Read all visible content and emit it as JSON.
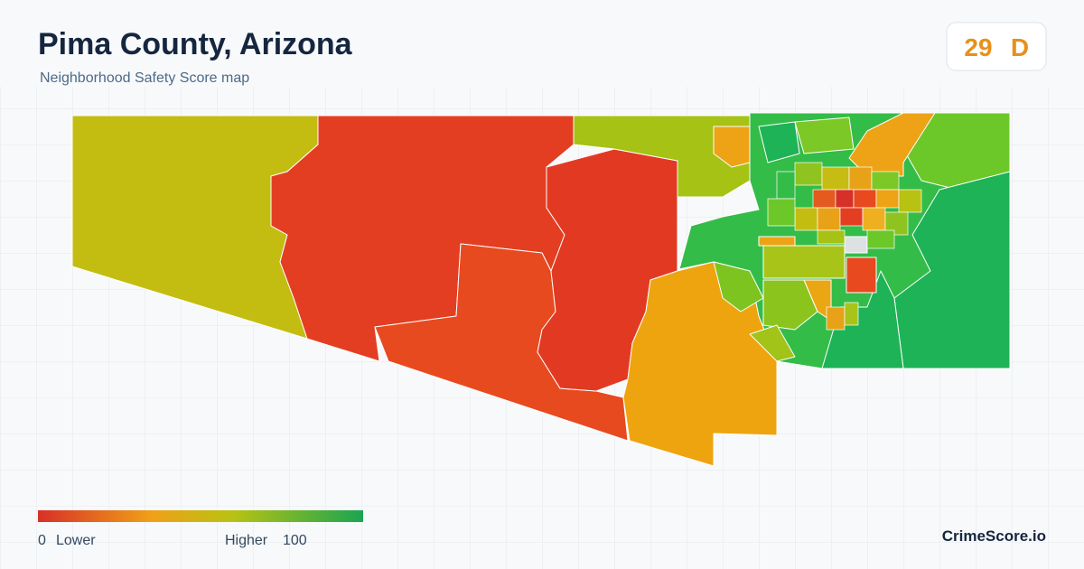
{
  "header": {
    "title": "Pima County, Arizona",
    "subtitle": "Neighborhood Safety Score map"
  },
  "badge": {
    "score": 29,
    "grade": "D"
  },
  "legend": {
    "min": 0,
    "min_label": "Lower",
    "max_label": "Higher",
    "max": 100
  },
  "brand": "CrimeScore.io"
}
